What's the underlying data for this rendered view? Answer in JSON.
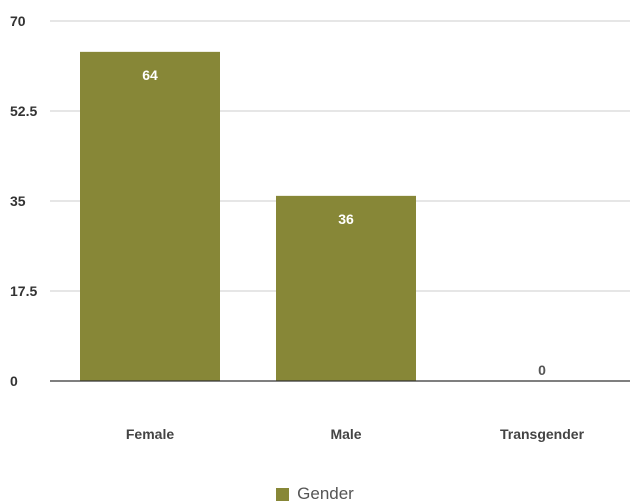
{
  "chart_data": {
    "type": "bar",
    "categories": [
      "Female",
      "Male",
      "Transgender"
    ],
    "series": [
      {
        "name": "Gender",
        "values": [
          64,
          36,
          0
        ]
      }
    ],
    "ylim": [
      0,
      70
    ],
    "yticks": [
      "0",
      "17.5",
      "35",
      "52.5",
      "70"
    ],
    "data_labels": [
      "64",
      "36",
      "0"
    ],
    "grid": true,
    "legend": "bottom-center",
    "bar_color": "#878737",
    "label_inside_color": "#ffffff",
    "label_outside_color": "#555555"
  }
}
